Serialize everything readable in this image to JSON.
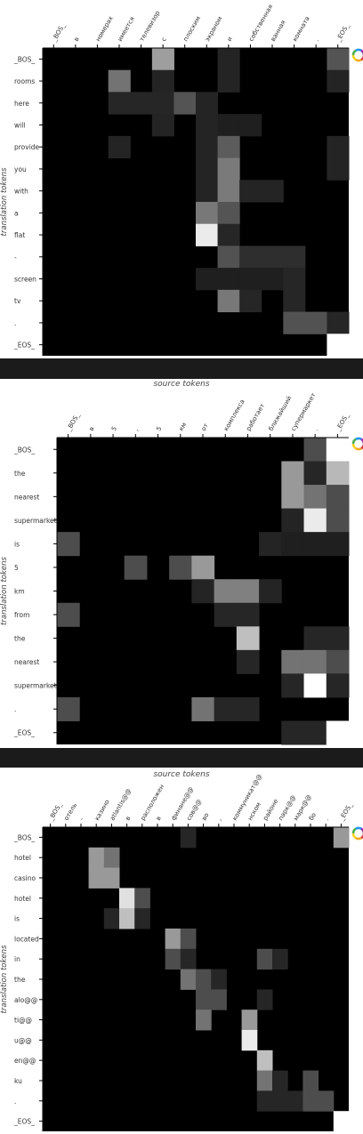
{
  "colors": {
    "max": "#ffffff",
    "min": "#000000",
    "bar": "#1b1b1b"
  },
  "icons": {
    "toolbar": "bokeh-logo-icon"
  },
  "chart_data": [
    {
      "type": "heatmap",
      "xlabel": "source tokens",
      "ylabel": "translation tokens",
      "x_categories": [
        "_BOS_",
        "в",
        "номерах",
        "имеется",
        "телевизор",
        "с",
        "плоским",
        "экраном",
        "и",
        "собственная",
        "ванная",
        "комната",
        ".",
        "_EOS_"
      ],
      "y_categories": [
        "_BOS_",
        "rooms",
        "here",
        "will",
        "provide",
        "you",
        "with",
        "a",
        "flat",
        "-",
        "screen",
        "tv",
        ".",
        "_EOS_"
      ],
      "values": [
        [
          0,
          0,
          0,
          0,
          0,
          0.62,
          0,
          0,
          0.14,
          0,
          0,
          0,
          0,
          0.33
        ],
        [
          0,
          0,
          0,
          0.45,
          0,
          0.14,
          0,
          0,
          0.14,
          0,
          0,
          0,
          0,
          0.14
        ],
        [
          0,
          0,
          0,
          0.15,
          0.15,
          0.15,
          0.33,
          0.14,
          0,
          0,
          0,
          0,
          0,
          0
        ],
        [
          0,
          0,
          0,
          0,
          0,
          0.14,
          0,
          0.14,
          0.12,
          0.12,
          0,
          0,
          0,
          0
        ],
        [
          0,
          0,
          0,
          0.14,
          0,
          0,
          0,
          0.14,
          0.36,
          0,
          0,
          0,
          0,
          0.14
        ],
        [
          0,
          0,
          0,
          0,
          0,
          0,
          0,
          0.14,
          0.48,
          0,
          0,
          0,
          0,
          0.14
        ],
        [
          0,
          0,
          0,
          0,
          0,
          0,
          0,
          0.14,
          0.48,
          0.14,
          0.14,
          0,
          0,
          0
        ],
        [
          0,
          0,
          0,
          0,
          0,
          0,
          0,
          0.47,
          0.33,
          0,
          0,
          0,
          0,
          0
        ],
        [
          0,
          0,
          0,
          0,
          0,
          0,
          0,
          0.92,
          0.15,
          0,
          0,
          0,
          0,
          0
        ],
        [
          0,
          0,
          0,
          0,
          0,
          0,
          0,
          0,
          0.32,
          0.18,
          0.18,
          0.18,
          0,
          0
        ],
        [
          0,
          0,
          0,
          0,
          0,
          0,
          0,
          0.12,
          0.12,
          0.12,
          0.12,
          0.15,
          0,
          0
        ],
        [
          0,
          0,
          0,
          0,
          0,
          0,
          0,
          0,
          0.47,
          0.15,
          0,
          0.15,
          0,
          0
        ],
        [
          0,
          0,
          0,
          0,
          0,
          0,
          0,
          0,
          0,
          0,
          0,
          0.32,
          0.32,
          0.15
        ],
        [
          0,
          0,
          0,
          0,
          0,
          0,
          0,
          0,
          0,
          0,
          0,
          0,
          0,
          1
        ]
      ]
    },
    {
      "type": "heatmap",
      "xlabel": "source tokens",
      "ylabel": "translation tokens",
      "x_categories": [
        "_BOS_",
        "в",
        "5",
        ",",
        "5",
        "км",
        "от",
        "комплекса",
        "работает",
        "ближайший",
        "супермаркет",
        ".",
        "_EOS_"
      ],
      "y_categories": [
        "_BOS_",
        "the",
        "nearest",
        "supermarket",
        "is",
        "5",
        "km",
        "from",
        "the",
        "nearest",
        "supermarket",
        ".",
        "_EOS_"
      ],
      "values": [
        [
          0,
          0,
          0,
          0,
          0,
          0,
          0,
          0,
          0,
          0,
          0,
          0.3,
          1
        ],
        [
          0,
          0,
          0,
          0,
          0,
          0,
          0,
          0,
          0,
          0,
          0.6,
          0.15,
          0.72
        ],
        [
          0,
          0,
          0,
          0,
          0,
          0,
          0,
          0,
          0,
          0,
          0.6,
          0.45,
          0.3
        ],
        [
          0,
          0,
          0,
          0,
          0,
          0,
          0,
          0,
          0,
          0,
          0.14,
          0.92,
          0.3
        ],
        [
          0.3,
          0,
          0,
          0,
          0,
          0,
          0,
          0,
          0,
          0.14,
          0.12,
          0.12,
          0.12
        ],
        [
          0,
          0,
          0,
          0.3,
          0,
          0.3,
          0.6,
          0,
          0,
          0,
          0,
          0,
          0
        ],
        [
          0,
          0,
          0,
          0,
          0,
          0,
          0.14,
          0.5,
          0.5,
          0.14,
          0,
          0,
          0
        ],
        [
          0.3,
          0,
          0,
          0,
          0,
          0,
          0,
          0.15,
          0.15,
          0,
          0,
          0,
          0
        ],
        [
          0,
          0,
          0,
          0,
          0,
          0,
          0,
          0,
          0.75,
          0,
          0,
          0.15,
          0.15
        ],
        [
          0,
          0,
          0,
          0,
          0,
          0,
          0,
          0,
          0.15,
          0,
          0.45,
          0.45,
          0.3
        ],
        [
          0,
          0,
          0,
          0,
          0,
          0,
          0,
          0,
          0,
          0,
          0.15,
          1,
          0.15
        ],
        [
          0.3,
          0,
          0,
          0,
          0,
          0,
          0.45,
          0.15,
          0.15,
          0,
          0,
          0,
          0
        ],
        [
          0,
          0,
          0,
          0,
          0,
          0,
          0,
          0,
          0,
          0,
          0.15,
          0.15,
          1
        ]
      ]
    },
    {
      "type": "heatmap",
      "xlabel": "",
      "ylabel": "translation tokens",
      "x_categories": [
        "_BOS_",
        "отель",
        "-",
        "казино",
        "atlantis@@",
        "в",
        "расположен",
        "в",
        "финане@@",
        "сов@@",
        "во",
        ",",
        "коммуникат@@",
        "нском",
        "районе",
        "парк@@",
        "марк@@",
        "бо",
        ".",
        "_EOS_"
      ],
      "y_categories": [
        "_BOS_",
        "hotel",
        "casino",
        "hotel",
        "is",
        "located",
        "in",
        "the",
        "alo@@",
        "ti@@",
        "u@@",
        "en@@",
        "ku",
        ".",
        "_EOS_"
      ],
      "values": [
        [
          0,
          0,
          0,
          0,
          0,
          0,
          0,
          0,
          0,
          0.15,
          0,
          0,
          0,
          0,
          0,
          0,
          0,
          0,
          0,
          0.6
        ],
        [
          0,
          0,
          0,
          0.6,
          0.45,
          0,
          0,
          0,
          0,
          0,
          0,
          0,
          0,
          0,
          0,
          0,
          0,
          0,
          0,
          0
        ],
        [
          0,
          0,
          0,
          0.6,
          0.6,
          0,
          0,
          0,
          0,
          0,
          0,
          0,
          0,
          0,
          0,
          0,
          0,
          0,
          0,
          0
        ],
        [
          0,
          0,
          0,
          0,
          0,
          0.88,
          0.3,
          0,
          0,
          0,
          0,
          0,
          0,
          0,
          0,
          0,
          0,
          0,
          0,
          0
        ],
        [
          0,
          0,
          0,
          0,
          0.15,
          0.75,
          0.15,
          0,
          0,
          0,
          0,
          0,
          0,
          0,
          0,
          0,
          0,
          0,
          0,
          0
        ],
        [
          0,
          0,
          0,
          0,
          0,
          0,
          0,
          0,
          0.6,
          0.3,
          0,
          0,
          0,
          0,
          0,
          0,
          0,
          0,
          0,
          0
        ],
        [
          0,
          0,
          0,
          0,
          0,
          0,
          0,
          0,
          0.3,
          0.15,
          0,
          0,
          0,
          0,
          0.3,
          0.15,
          0,
          0,
          0,
          0
        ],
        [
          0,
          0,
          0,
          0,
          0,
          0,
          0,
          0,
          0,
          0.45,
          0.3,
          0.15,
          0,
          0,
          0,
          0,
          0,
          0,
          0,
          0
        ],
        [
          0,
          0,
          0,
          0,
          0,
          0,
          0,
          0,
          0,
          0,
          0.3,
          0.3,
          0,
          0,
          0.15,
          0,
          0,
          0,
          0,
          0
        ],
        [
          0,
          0,
          0,
          0,
          0,
          0,
          0,
          0,
          0,
          0,
          0.45,
          0,
          0,
          0.6,
          0,
          0,
          0,
          0,
          0,
          0
        ],
        [
          0,
          0,
          0,
          0,
          0,
          0,
          0,
          0,
          0,
          0,
          0,
          0,
          0,
          0.92,
          0,
          0,
          0,
          0,
          0,
          0
        ],
        [
          0,
          0,
          0,
          0,
          0,
          0,
          0,
          0,
          0,
          0,
          0,
          0,
          0,
          0,
          0.75,
          0,
          0,
          0,
          0,
          0
        ],
        [
          0,
          0,
          0,
          0,
          0,
          0,
          0,
          0,
          0,
          0,
          0,
          0,
          0,
          0,
          0.45,
          0.15,
          0,
          0.3,
          0,
          0
        ],
        [
          0,
          0,
          0,
          0,
          0,
          0,
          0,
          0,
          0,
          0,
          0,
          0,
          0,
          0,
          0.15,
          0.15,
          0.15,
          0.3,
          0.3,
          0
        ],
        [
          0,
          0,
          0,
          0,
          0,
          0,
          0,
          0,
          0,
          0,
          0,
          0,
          0,
          0,
          0,
          0,
          0,
          0,
          0,
          1
        ]
      ]
    }
  ]
}
